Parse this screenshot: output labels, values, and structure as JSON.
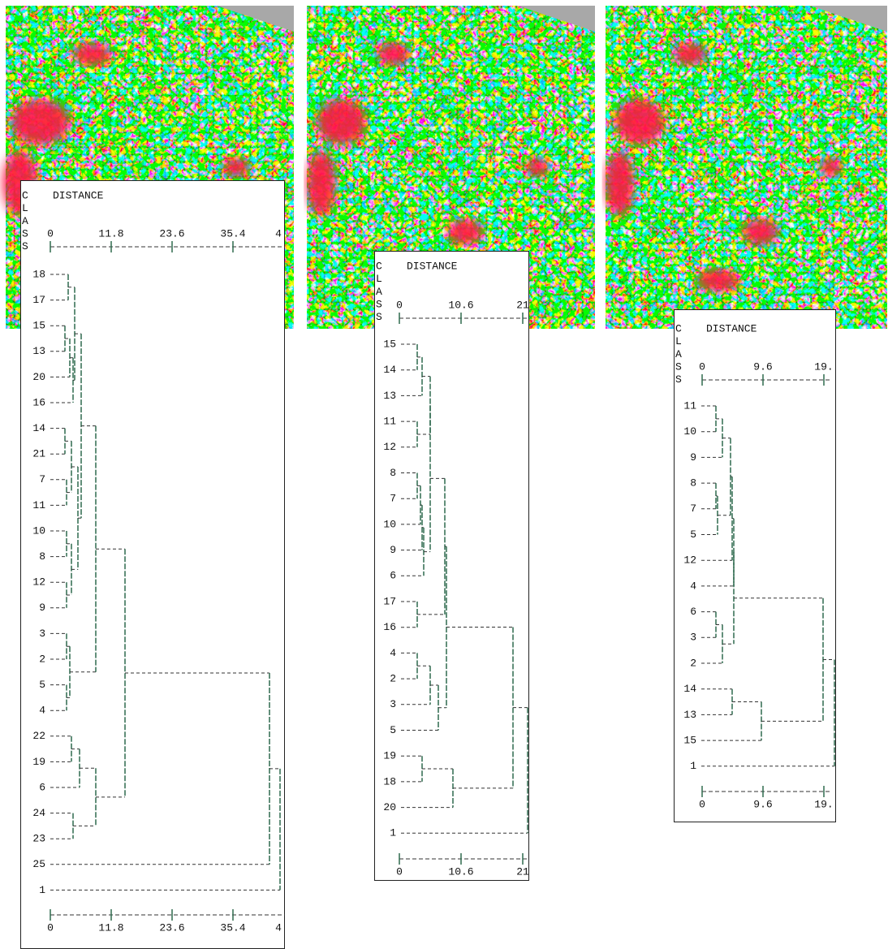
{
  "panels": [
    {
      "header": {
        "letters": [
          "C",
          "L",
          "A",
          "S",
          "S"
        ],
        "title": "DISTANCE"
      },
      "ticks": [
        "0",
        "11.8",
        "23.6",
        "35.4",
        "4"
      ],
      "classes": [
        "18",
        "17",
        "15",
        "13",
        "20",
        "16",
        "14",
        "21",
        "7",
        "11",
        "10",
        "8",
        "12",
        "9",
        "3",
        "2",
        "5",
        "4",
        "22",
        "19",
        "6",
        "24",
        "23",
        "25",
        "1"
      ]
    },
    {
      "header": {
        "letters": [
          "C",
          "L",
          "A",
          "S",
          "S"
        ],
        "title": "DISTANCE"
      },
      "ticks": [
        "0",
        "10.6",
        "21"
      ],
      "classes": [
        "15",
        "14",
        "13",
        "11",
        "12",
        "8",
        "7",
        "10",
        "9",
        "6",
        "17",
        "16",
        "4",
        "2",
        "3",
        "5",
        "19",
        "18",
        "20",
        "1"
      ]
    },
    {
      "header": {
        "letters": [
          "C",
          "L",
          "A",
          "S",
          "S"
        ],
        "title": "DISTANCE"
      },
      "ticks": [
        "0",
        "9.6",
        "19."
      ],
      "classes": [
        "11",
        "10",
        "9",
        "8",
        "7",
        "5",
        "12",
        "4",
        "6",
        "3",
        "2",
        "14",
        "13",
        "15",
        "1"
      ]
    }
  ]
}
